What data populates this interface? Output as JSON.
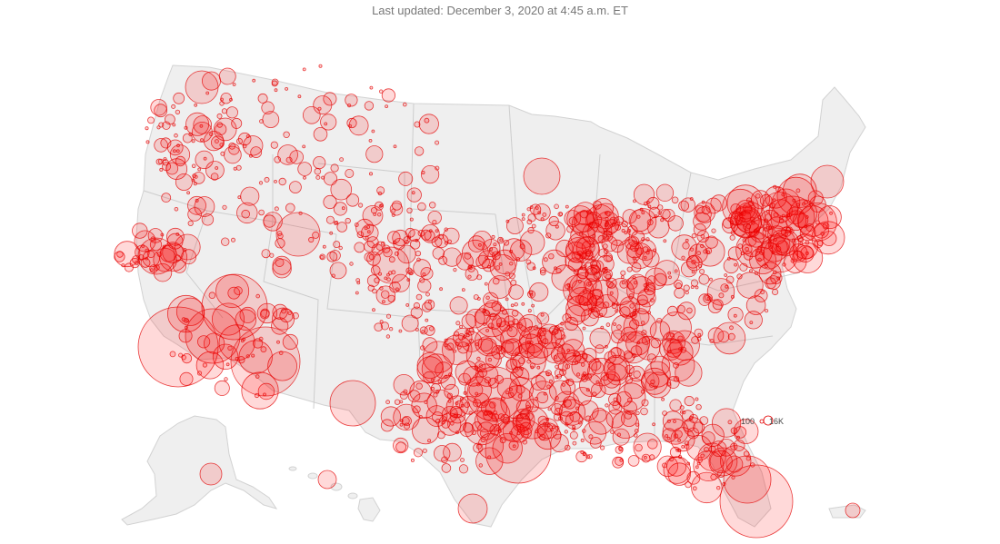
{
  "header": {
    "last_updated": "Last updated: December 3, 2020 at 4:45 a.m. ET"
  },
  "legend": {
    "small_label": "100",
    "large_label": "16K"
  },
  "colors": {
    "bubble_fill": "#ff0000",
    "bubble_stroke": "#e30000",
    "land": "#efefef",
    "borders": "#cfcfcf"
  },
  "map_data": {
    "type": "bubble-map",
    "region": "United States by county",
    "size_legend": [
      "100",
      "16K"
    ]
  }
}
